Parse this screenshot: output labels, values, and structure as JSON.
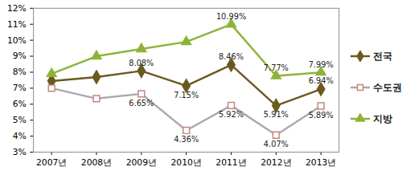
{
  "chart_data": {
    "type": "line",
    "categories": [
      "2007년",
      "2008년",
      "2009년",
      "2010년",
      "2011년",
      "2012년",
      "2013년"
    ],
    "ylim": [
      3,
      12
    ],
    "yticks": [
      {
        "value": 3,
        "label": "3%"
      },
      {
        "value": 4,
        "label": "4%"
      },
      {
        "value": 5,
        "label": "5%"
      },
      {
        "value": 6,
        "label": "6%"
      },
      {
        "value": 7,
        "label": "7%"
      },
      {
        "value": 8,
        "label": "8%"
      },
      {
        "value": 9,
        "label": "9%"
      },
      {
        "value": 10,
        "label": "10%"
      },
      {
        "value": 11,
        "label": "11%"
      },
      {
        "value": 12,
        "label": "12%"
      }
    ],
    "legend": "right",
    "data_labels": true,
    "series": [
      {
        "name": "전국",
        "color": "#6b5a1e",
        "marker": "diamond",
        "values": [
          7.45,
          7.7,
          8.08,
          7.15,
          8.46,
          5.91,
          6.94
        ],
        "value_labels": [
          null,
          null,
          "8.08%",
          "7.15%",
          "8.46%",
          "5.91%",
          "6.94%"
        ]
      },
      {
        "name": "수도권",
        "color": "#aaaaaa",
        "marker": "square",
        "values": [
          7.0,
          6.35,
          6.65,
          4.36,
          5.92,
          4.07,
          5.89
        ],
        "value_labels": [
          null,
          null,
          "6.65%",
          "4.36%",
          "5.92%",
          "4.07%",
          "5.89%"
        ]
      },
      {
        "name": "지방",
        "color": "#8db43a",
        "marker": "triangle",
        "values": [
          7.9,
          9.0,
          9.45,
          9.9,
          10.99,
          7.77,
          7.99
        ],
        "value_labels": [
          null,
          null,
          null,
          null,
          "10.99%",
          "7.77%",
          "7.99%"
        ]
      }
    ]
  }
}
